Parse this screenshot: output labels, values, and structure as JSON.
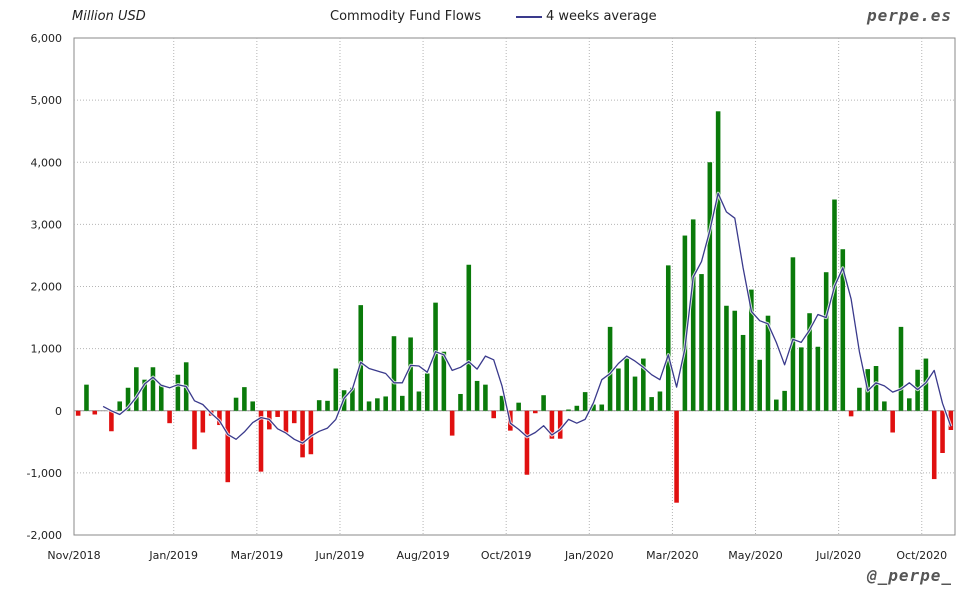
{
  "header": {
    "unit_label": "Million USD",
    "brand": "perpe.es",
    "handle": "@_perpe_"
  },
  "colors": {
    "positive": "#0a7a0a",
    "negative": "#e01010",
    "average": "#3a3a8c",
    "grid": "#b5b5b5"
  },
  "chart_data": {
    "type": "bar",
    "title": "Commodity Fund Flows",
    "ylabel": "Million USD",
    "xlabel": "",
    "ylim": [
      -2000,
      6000
    ],
    "yticks": [
      -2000,
      -1000,
      0,
      1000,
      2000,
      3000,
      4000,
      5000,
      6000
    ],
    "ytick_labels": [
      "-2,000",
      "-1,000",
      "0",
      "1,000",
      "2,000",
      "3,000",
      "4,000",
      "5,000",
      "6,000"
    ],
    "xticks": [
      {
        "label": "Nov/2018",
        "week": 0
      },
      {
        "label": "Jan/2019",
        "week": 10
      },
      {
        "label": "Mar/2019",
        "week": 20
      },
      {
        "label": "Jun/2019",
        "week": 30
      },
      {
        "label": "Aug/2019",
        "week": 40
      },
      {
        "label": "Oct/2019",
        "week": 50
      },
      {
        "label": "Jan/2020",
        "week": 60
      },
      {
        "label": "Mar/2020",
        "week": 70
      },
      {
        "label": "May/2020",
        "week": 80
      },
      {
        "label": "Jul/2020",
        "week": 90
      },
      {
        "label": "Oct/2020",
        "week": 100
      }
    ],
    "grid": true,
    "legend": "top",
    "series": [
      {
        "type": "bar",
        "values": [
          -80,
          420,
          -60,
          0,
          -330,
          150,
          370,
          700,
          500,
          700,
          420,
          -200,
          580,
          780,
          -620,
          -350,
          -80,
          -230,
          -1150,
          210,
          380,
          150,
          -980,
          -300,
          -100,
          -350,
          -200,
          -750,
          -700,
          170,
          160,
          680,
          330,
          370,
          1700,
          150,
          200,
          230,
          1200,
          240,
          1180,
          310,
          600,
          1740,
          950,
          -400,
          270,
          2350,
          480,
          420,
          -120,
          240,
          -320,
          130,
          -1030,
          -40,
          250,
          -450,
          -450,
          20,
          80,
          300,
          100,
          100,
          1350,
          680,
          840,
          550,
          840,
          220,
          310,
          2340,
          -1480,
          2820,
          3080,
          2200,
          4000,
          4820,
          1690,
          1610,
          1220,
          1950,
          820,
          1530,
          180,
          320,
          2470,
          1020,
          1570,
          1030,
          2230,
          3400,
          2600,
          -90,
          370,
          670,
          720,
          150,
          -350,
          1350,
          200,
          660,
          840,
          -1100,
          -680,
          -310
        ]
      },
      {
        "type": "line",
        "name": "4 weeks average",
        "values": [
          null,
          null,
          null,
          70,
          0,
          -60,
          50,
          220,
          430,
          540,
          410,
          370,
          420,
          390,
          160,
          100,
          -40,
          -160,
          -380,
          -460,
          -340,
          -190,
          -110,
          -140,
          -290,
          -360,
          -460,
          -520,
          -410,
          -330,
          -280,
          -140,
          200,
          350,
          780,
          680,
          640,
          600,
          450,
          450,
          730,
          720,
          620,
          950,
          900,
          650,
          700,
          790,
          670,
          880,
          820,
          400,
          -200,
          -300,
          -420,
          -350,
          -240,
          -390,
          -300,
          -140,
          -200,
          -140,
          130,
          500,
          600,
          760,
          880,
          800,
          700,
          580,
          500,
          900,
          380,
          1000,
          2150,
          2400,
          2900,
          3500,
          3200,
          3100,
          2300,
          1600,
          1450,
          1400,
          1100,
          740,
          1150,
          1100,
          1300,
          1550,
          1500,
          2000,
          2300,
          1800,
          950,
          320,
          450,
          400,
          300,
          350,
          450,
          340,
          450,
          650,
          120,
          -250
        ]
      }
    ]
  }
}
